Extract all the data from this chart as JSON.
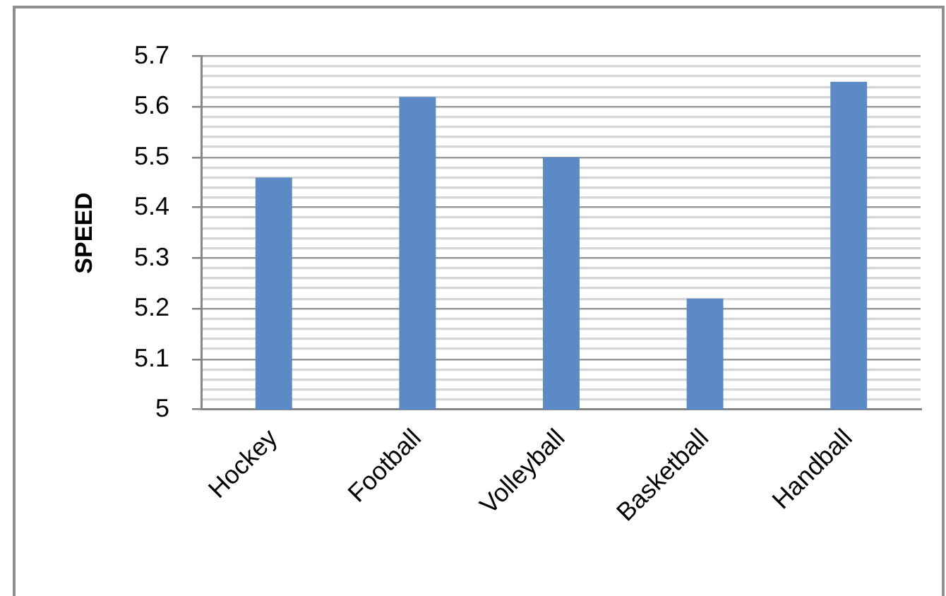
{
  "chart_data": {
    "type": "bar",
    "categories": [
      "Hockey",
      "Football",
      "Volleyball",
      "Basketball",
      "Handball"
    ],
    "values": [
      5.46,
      5.62,
      5.5,
      5.22,
      5.65
    ],
    "color": "#5b8ac6",
    "ylabel": "SPEED",
    "ylim": [
      5,
      5.7
    ],
    "yticks": [
      5,
      {
        "value": 5.02,
        "label": null
      },
      {
        "value": 5.04,
        "label": null
      },
      {
        "value": 5.06,
        "label": null
      },
      {
        "value": 5.08,
        "label": null
      },
      5.1,
      {
        "value": 5.12,
        "label": null
      },
      {
        "value": 5.14,
        "label": null
      },
      {
        "value": 5.16,
        "label": null
      },
      {
        "value": 5.18,
        "label": null
      },
      5.2,
      {
        "value": 5.22,
        "label": null
      },
      {
        "value": 5.24,
        "label": null
      },
      {
        "value": 5.26,
        "label": null
      },
      {
        "value": 5.28,
        "label": null
      },
      5.3,
      {
        "value": 5.32,
        "label": null
      },
      {
        "value": 5.34,
        "label": null
      },
      {
        "value": 5.36,
        "label": null
      },
      {
        "value": 5.38,
        "label": null
      },
      5.4,
      {
        "value": 5.42,
        "label": null
      },
      {
        "value": 5.44,
        "label": null
      },
      {
        "value": 5.46,
        "label": null
      },
      {
        "value": 5.48,
        "label": null
      },
      5.5,
      {
        "value": 5.52,
        "label": null
      },
      {
        "value": 5.54,
        "label": null
      },
      {
        "value": 5.56,
        "label": null
      },
      {
        "value": 5.58,
        "label": null
      },
      5.6,
      {
        "value": 5.62,
        "label": null
      },
      {
        "value": 5.64,
        "label": null
      },
      {
        "value": 5.66,
        "label": null
      },
      {
        "value": 5.68,
        "label": null
      },
      5.7
    ],
    "grid": "y"
  }
}
